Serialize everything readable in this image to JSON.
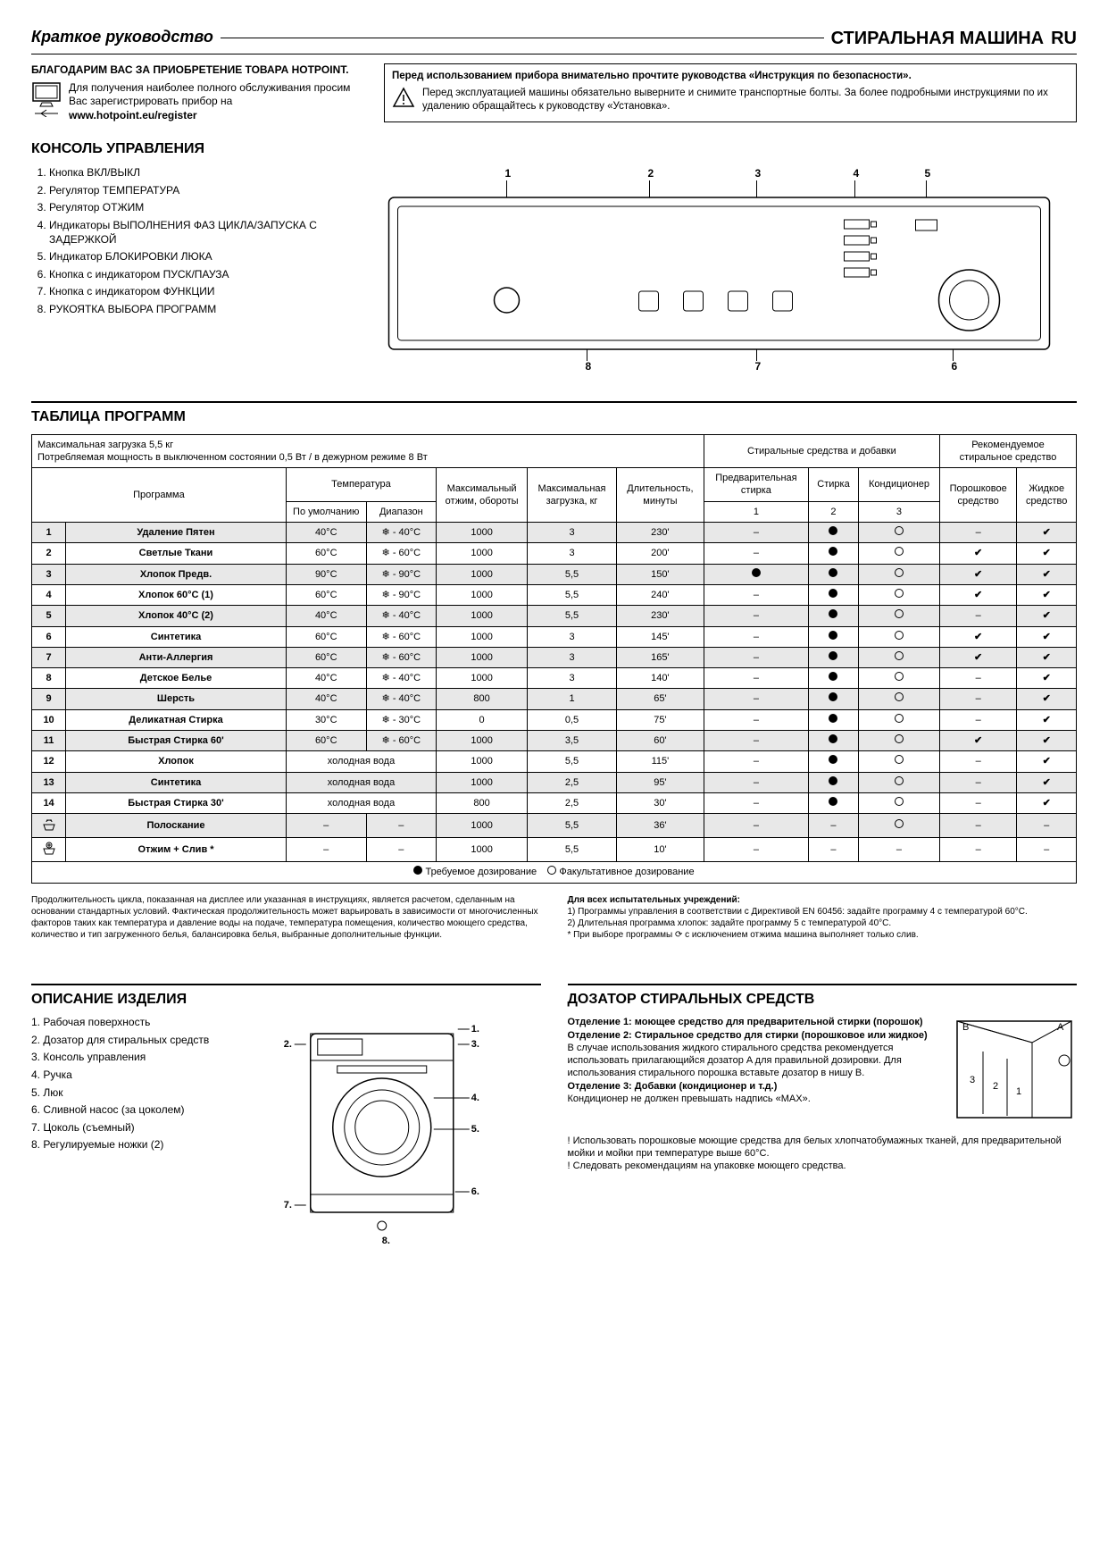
{
  "header": {
    "left": "Краткое руководство",
    "right": "СТИРАЛЬНАЯ МАШИНА",
    "lang": "RU"
  },
  "thanks": {
    "title": "БЛАГОДАРИМ ВАС ЗА ПРИОБРЕТЕНИЕ ТОВАРА HOTPOINT.",
    "body": "Для получения наиболее полного обслуживания просим Вас зарегистрировать прибор на",
    "url": "www.hotpoint.eu/register"
  },
  "warning": {
    "title": "Перед использованием прибора внимательно прочтите руководства «Инструкция по безопасности».",
    "body": "Перед эксплуатацией машины обязательно выверните и снимите транспортные болты. За более подробными инструкциями по их удалению обращайтесь к руководству «Установка»."
  },
  "console": {
    "heading": "КОНСОЛЬ УПРАВЛЕНИЯ",
    "items": [
      "Кнопка ВКЛ/ВЫКЛ",
      "Регулятор ТЕМПЕРАТУРА",
      "Регулятор ОТЖИМ",
      "Индикаторы ВЫПОЛНЕНИЯ ФАЗ ЦИКЛА/ЗАПУСКА С ЗАДЕРЖКОЙ",
      "Индикатор БЛОКИРОВКИ ЛЮКА",
      "Кнопка с индикатором ПУСК/ПАУЗА",
      "Кнопка с индикатором ФУНКЦИИ",
      "РУКОЯТКА ВЫБОРА ПРОГРАММ"
    ],
    "labels": [
      "1",
      "2",
      "3",
      "4",
      "5",
      "6",
      "7",
      "8"
    ]
  },
  "table": {
    "heading": "ТАБЛИЦА ПРОГРАММ",
    "max_load": "Максимальная загрузка 5,5 кг",
    "power": "Потребляемая мощность в выключенном состоянии 0,5 Вт / в дежурном режиме 8 Вт",
    "det_additives": "Стиральные средства и добавки",
    "recommended": "Рекомендуемое стиральное средство",
    "col_program": "Программа",
    "col_temp": "Температура",
    "col_temp_default": "По умолчанию",
    "col_temp_range": "Диапазон",
    "col_spin": "Максимальный отжим, обороты",
    "col_load": "Максимальная загрузка, кг",
    "col_duration": "Длительность, минуты",
    "col_prewash": "Предварительная стирка",
    "col_wash": "Стирка",
    "col_cond": "Кондиционер",
    "col_powder": "Порошковое средство",
    "col_liquid": "Жидкое средство",
    "det_nums": [
      "1",
      "2",
      "3"
    ],
    "rows": [
      {
        "n": "1",
        "name": "Удаление Пятен",
        "td": "40°C",
        "tr": "❄ - 40°C",
        "spin": "1000",
        "load": "3",
        "dur": "230'",
        "p": "–",
        "w": "●",
        "c": "○",
        "pw": "–",
        "lq": "✔",
        "stripe": true
      },
      {
        "n": "2",
        "name": "Светлые Ткани",
        "td": "60°C",
        "tr": "❄ - 60°C",
        "spin": "1000",
        "load": "3",
        "dur": "200'",
        "p": "–",
        "w": "●",
        "c": "○",
        "pw": "✔",
        "lq": "✔",
        "stripe": false
      },
      {
        "n": "3",
        "name": "Хлопок Предв.",
        "td": "90°C",
        "tr": "❄ - 90°C",
        "spin": "1000",
        "load": "5,5",
        "dur": "150'",
        "p": "●",
        "w": "●",
        "c": "○",
        "pw": "✔",
        "lq": "✔",
        "stripe": true
      },
      {
        "n": "4",
        "name": "Хлопок 60°C (1)",
        "td": "60°C",
        "tr": "❄ - 90°C",
        "spin": "1000",
        "load": "5,5",
        "dur": "240'",
        "p": "–",
        "w": "●",
        "c": "○",
        "pw": "✔",
        "lq": "✔",
        "stripe": false
      },
      {
        "n": "5",
        "name": "Хлопок 40°C (2)",
        "td": "40°C",
        "tr": "❄ - 40°C",
        "spin": "1000",
        "load": "5,5",
        "dur": "230'",
        "p": "–",
        "w": "●",
        "c": "○",
        "pw": "–",
        "lq": "✔",
        "stripe": true
      },
      {
        "n": "6",
        "name": "Синтетика",
        "td": "60°C",
        "tr": "❄ - 60°C",
        "spin": "1000",
        "load": "3",
        "dur": "145'",
        "p": "–",
        "w": "●",
        "c": "○",
        "pw": "✔",
        "lq": "✔",
        "stripe": false
      },
      {
        "n": "7",
        "name": "Анти-Аллергия",
        "td": "60°C",
        "tr": "❄ - 60°C",
        "spin": "1000",
        "load": "3",
        "dur": "165'",
        "p": "–",
        "w": "●",
        "c": "○",
        "pw": "✔",
        "lq": "✔",
        "stripe": true
      },
      {
        "n": "8",
        "name": "Детское Белье",
        "td": "40°C",
        "tr": "❄ - 40°C",
        "spin": "1000",
        "load": "3",
        "dur": "140'",
        "p": "–",
        "w": "●",
        "c": "○",
        "pw": "–",
        "lq": "✔",
        "stripe": false
      },
      {
        "n": "9",
        "name": "Шерсть",
        "td": "40°C",
        "tr": "❄ - 40°C",
        "spin": "800",
        "load": "1",
        "dur": "65'",
        "p": "–",
        "w": "●",
        "c": "○",
        "pw": "–",
        "lq": "✔",
        "stripe": true
      },
      {
        "n": "10",
        "name": "Деликатная Стирка",
        "td": "30°C",
        "tr": "❄ - 30°C",
        "spin": "0",
        "load": "0,5",
        "dur": "75'",
        "p": "–",
        "w": "●",
        "c": "○",
        "pw": "–",
        "lq": "✔",
        "stripe": false
      },
      {
        "n": "11",
        "name": "Быстрая Стирка 60'",
        "td": "60°C",
        "tr": "❄ - 60°C",
        "spin": "1000",
        "load": "3,5",
        "dur": "60'",
        "p": "–",
        "w": "●",
        "c": "○",
        "pw": "✔",
        "lq": "✔",
        "stripe": true
      },
      {
        "n": "12",
        "name": "Хлопок",
        "td": "холодная вода",
        "tr": "",
        "spin": "1000",
        "load": "5,5",
        "dur": "115'",
        "p": "–",
        "w": "●",
        "c": "○",
        "pw": "–",
        "lq": "✔",
        "stripe": false,
        "cold": true
      },
      {
        "n": "13",
        "name": "Синтетика",
        "td": "холодная вода",
        "tr": "",
        "spin": "1000",
        "load": "2,5",
        "dur": "95'",
        "p": "–",
        "w": "●",
        "c": "○",
        "pw": "–",
        "lq": "✔",
        "stripe": true,
        "cold": true
      },
      {
        "n": "14",
        "name": "Быстрая Стирка 30'",
        "td": "холодная вода",
        "tr": "",
        "spin": "800",
        "load": "2,5",
        "dur": "30'",
        "p": "–",
        "w": "●",
        "c": "○",
        "pw": "–",
        "lq": "✔",
        "stripe": false,
        "cold": true
      },
      {
        "n": "icon1",
        "name": "Полоскание",
        "td": "–",
        "tr": "–",
        "spin": "1000",
        "load": "5,5",
        "dur": "36'",
        "p": "–",
        "w": "–",
        "c": "○",
        "pw": "–",
        "lq": "–",
        "stripe": true,
        "icon": "rinse"
      },
      {
        "n": "icon2",
        "name": "Отжим + Слив *",
        "td": "–",
        "tr": "–",
        "spin": "1000",
        "load": "5,5",
        "dur": "10'",
        "p": "–",
        "w": "–",
        "c": "–",
        "pw": "–",
        "lq": "–",
        "stripe": false,
        "icon": "spin"
      }
    ],
    "legend_req": "Требуемое дозирование",
    "legend_opt": "Факультативное дозирование"
  },
  "notes": {
    "left": "Продолжительность цикла, показанная на дисплее или указанная в инструкциях, является расчетом, сделанным на основании стандартных условий. Фактическая продолжительность может варьировать в зависимости от многочисленных факторов таких как температура и давление воды на подаче, температура помещения, количество моющего средства, количество и тип загруженного белья, балансировка белья, выбранные дополнительные функции.",
    "right_title": "Для всех испытательных учреждений:",
    "right_1": "1) Программы управления в соответствии с Директивой EN 60456: задайте программу 4 с температурой 60°C.",
    "right_2": "2)  Длительная программа хлопок: задайте программу 5 с температурой 40°C.",
    "right_3": "* При выборе программы ⟳ с исключением отжима машина выполняет только слив."
  },
  "desc": {
    "heading": "ОПИСАНИЕ ИЗДЕЛИЯ",
    "items": [
      "1. Рабочая поверхность",
      "2. Дозатор для стиральных средств",
      "3. Консоль управления",
      "4. Ручка",
      "5. Люк",
      "6. Сливной насос (за цоколем)",
      "7. Цоколь (съемный)",
      "8. Регулируемые ножки (2)"
    ],
    "labels": [
      "1.",
      "2.",
      "3.",
      "4.",
      "5.",
      "6.",
      "7.",
      "8."
    ]
  },
  "disp": {
    "heading": "ДОЗАТОР СТИРАЛЬНЫХ СРЕДСТВ",
    "c1_title": "Отделение 1: моющее средство для предварительной стирки (порошок)",
    "c2_title": "Отделение 2: Стиральное средство для стирки (порошковое или жидкое)",
    "c2_body": "В случае использования жидкого стирального средства рекомендуется использовать прилагающийся дозатор A для правильной дозировки. Для использования стирального порошка вставьте дозатор в нишу B.",
    "c3_title": "Отделение 3: Добавки (кондиционер и т.д.)",
    "c3_body": "Кондиционер не должен превышать надпись «МАХ».",
    "foot1": "! Использовать порошковые моющие средства для белых хлопчатобумажных тканей, для предварительной мойки и мойки при температуре выше 60°C.",
    "foot2": "! Следовать рекомендациям на упаковке моющего средства.",
    "label_a": "A",
    "label_b": "B"
  },
  "colors": {
    "stripe": "#e8e8e8",
    "border": "#000000",
    "text": "#000000",
    "bg": "#ffffff"
  }
}
